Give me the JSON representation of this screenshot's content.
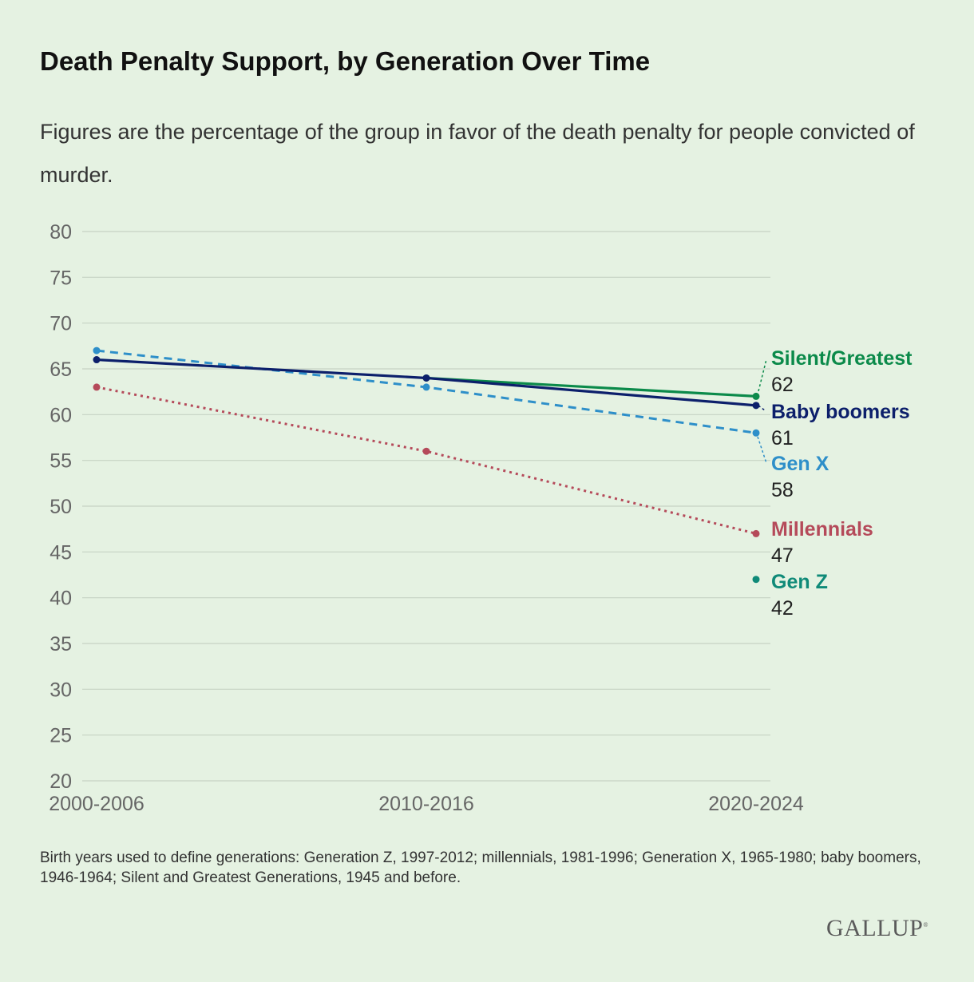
{
  "title": "Death Penalty Support, by Generation Over Time",
  "subtitle": "Figures are the percentage of the group in favor of the death penalty for people convicted of murder.",
  "footnote": "Birth years used to define generations: Generation Z, 1997-2012; millennials, 1981-1996; Generation X, 1965-1980; baby boomers, 1946-1964; Silent and Greatest Generations, 1945 and before.",
  "logo": "GALLUP",
  "chart_data": {
    "type": "line",
    "categories": [
      "2000-2006",
      "2010-2016",
      "2020-2024"
    ],
    "ylim": [
      20,
      80
    ],
    "yticks": [
      20,
      25,
      30,
      35,
      40,
      45,
      50,
      55,
      60,
      65,
      70,
      75,
      80
    ],
    "grid": true,
    "legend": "direct labels at right",
    "series": [
      {
        "name": "Silent/Greatest",
        "values": [
          null,
          64,
          62
        ],
        "color": "#0b8a4a",
        "style": "solid"
      },
      {
        "name": "Baby boomers",
        "values": [
          66,
          64,
          61
        ],
        "color": "#0c1f6b",
        "style": "solid"
      },
      {
        "name": "Gen X",
        "values": [
          67,
          63,
          58
        ],
        "color": "#2e8fc9",
        "style": "dashed"
      },
      {
        "name": "Millennials",
        "values": [
          63,
          56,
          47
        ],
        "color": "#b54a5a",
        "style": "dotted"
      },
      {
        "name": "Gen Z",
        "values": [
          null,
          null,
          42
        ],
        "color": "#0f8a78",
        "style": "point"
      }
    ]
  }
}
